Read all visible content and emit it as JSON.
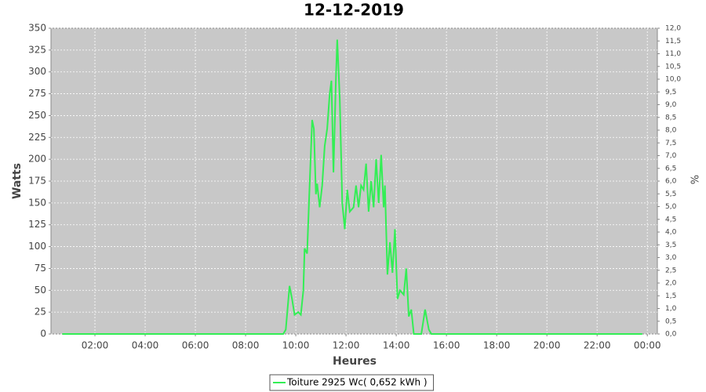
{
  "chart_data": {
    "type": "line",
    "title": "12-12-2019",
    "x_label": "Heures",
    "y_label": "Watts",
    "y2_label": "%",
    "x": [
      0.7,
      9.5,
      9.6,
      9.75,
      9.85,
      9.95,
      10.1,
      10.2,
      10.3,
      10.35,
      10.45,
      10.55,
      10.65,
      10.72,
      10.8,
      10.85,
      10.95,
      11.05,
      11.15,
      11.25,
      11.35,
      11.42,
      11.5,
      11.6,
      11.65,
      11.75,
      11.85,
      11.95,
      12.05,
      12.15,
      12.3,
      12.4,
      12.5,
      12.6,
      12.7,
      12.8,
      12.9,
      13.0,
      13.1,
      13.2,
      13.3,
      13.4,
      13.5,
      13.55,
      13.65,
      13.75,
      13.85,
      13.95,
      14.05,
      14.15,
      14.3,
      14.4,
      14.5,
      14.6,
      14.7,
      15.0,
      15.15,
      15.3,
      15.4,
      23.8
    ],
    "series": [
      {
        "name": "Toiture 2925 Wc( 0,652 kWh )",
        "color": "#33ee55",
        "values": [
          0,
          0,
          5,
          55,
          40,
          22,
          25,
          22,
          50,
          98,
          92,
          170,
          245,
          235,
          160,
          172,
          145,
          170,
          215,
          235,
          275,
          290,
          185,
          295,
          337,
          270,
          150,
          120,
          165,
          140,
          145,
          170,
          145,
          170,
          165,
          195,
          140,
          175,
          145,
          200,
          150,
          205,
          145,
          170,
          68,
          105,
          70,
          120,
          40,
          50,
          45,
          75,
          20,
          28,
          0,
          0,
          28,
          5,
          0,
          0
        ]
      }
    ],
    "xlim": [
      0.25,
      24.4
    ],
    "xticks": [
      {
        "value": 2,
        "label": "02:00"
      },
      {
        "value": 4,
        "label": "04:00"
      },
      {
        "value": 6,
        "label": "06:00"
      },
      {
        "value": 8,
        "label": "08:00"
      },
      {
        "value": 10,
        "label": "10:00"
      },
      {
        "value": 12,
        "label": "12:00"
      },
      {
        "value": 14,
        "label": "14:00"
      },
      {
        "value": 16,
        "label": "16:00"
      },
      {
        "value": 18,
        "label": "18:00"
      },
      {
        "value": 20,
        "label": "20:00"
      },
      {
        "value": 22,
        "label": "22:00"
      },
      {
        "value": 24,
        "label": "00:00"
      }
    ],
    "ylim": [
      0,
      350
    ],
    "yticks": [
      0,
      25,
      50,
      75,
      100,
      125,
      150,
      175,
      200,
      225,
      250,
      275,
      300,
      325,
      350
    ],
    "y2lim": [
      0,
      12
    ],
    "y2ticks": [
      {
        "value": 0,
        "label": "0,0"
      },
      {
        "value": 0.5,
        "label": "0,5"
      },
      {
        "value": 1,
        "label": "1,0"
      },
      {
        "value": 1.5,
        "label": "1,5"
      },
      {
        "value": 2,
        "label": "2,0"
      },
      {
        "value": 2.5,
        "label": "2,5"
      },
      {
        "value": 3,
        "label": "3,0"
      },
      {
        "value": 3.5,
        "label": "3,5"
      },
      {
        "value": 4,
        "label": "4,0"
      },
      {
        "value": 4.5,
        "label": "4,5"
      },
      {
        "value": 5,
        "label": "5,0"
      },
      {
        "value": 5.5,
        "label": "5,5"
      },
      {
        "value": 6,
        "label": "6,0"
      },
      {
        "value": 6.5,
        "label": "6,5"
      },
      {
        "value": 7,
        "label": "7,0"
      },
      {
        "value": 7.5,
        "label": "7,5"
      },
      {
        "value": 8,
        "label": "8,0"
      },
      {
        "value": 8.5,
        "label": "8,5"
      },
      {
        "value": 9,
        "label": "9,0"
      },
      {
        "value": 9.5,
        "label": "9,5"
      },
      {
        "value": 10,
        "label": "10,0"
      },
      {
        "value": 10.5,
        "label": "10,5"
      },
      {
        "value": 11,
        "label": "11,0"
      },
      {
        "value": 11.5,
        "label": "11,5"
      },
      {
        "value": 12,
        "label": "12,0"
      }
    ],
    "grid": true,
    "legend": "bottom"
  }
}
